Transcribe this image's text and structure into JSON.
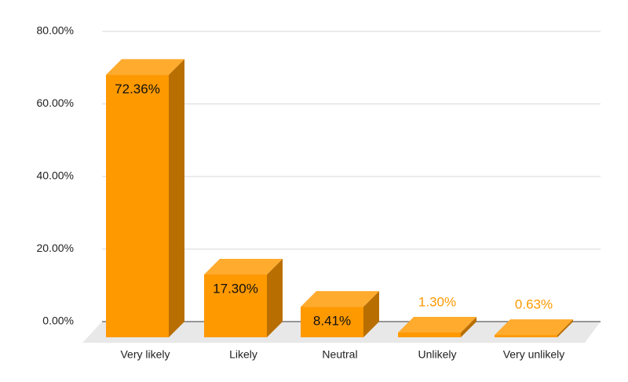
{
  "chart_data": {
    "type": "bar3d",
    "categories": [
      "Very likely",
      "Likely",
      "Neutral",
      "Unlikely",
      "Very unlikely"
    ],
    "values": [
      72.36,
      17.3,
      8.41,
      1.3,
      0.63
    ],
    "value_labels": [
      "72.36%",
      "17.30%",
      "8.41%",
      "1.30%",
      "0.63%"
    ],
    "color": "#ff9900",
    "ylim": [
      0,
      80
    ],
    "yticks": [
      {
        "value": 0,
        "label": "0.00%"
      },
      {
        "value": 20,
        "label": "20.00%"
      },
      {
        "value": 40,
        "label": "40.00%"
      },
      {
        "value": 60,
        "label": "60.00%"
      },
      {
        "value": 80,
        "label": "80.00%"
      }
    ],
    "grid": true
  }
}
